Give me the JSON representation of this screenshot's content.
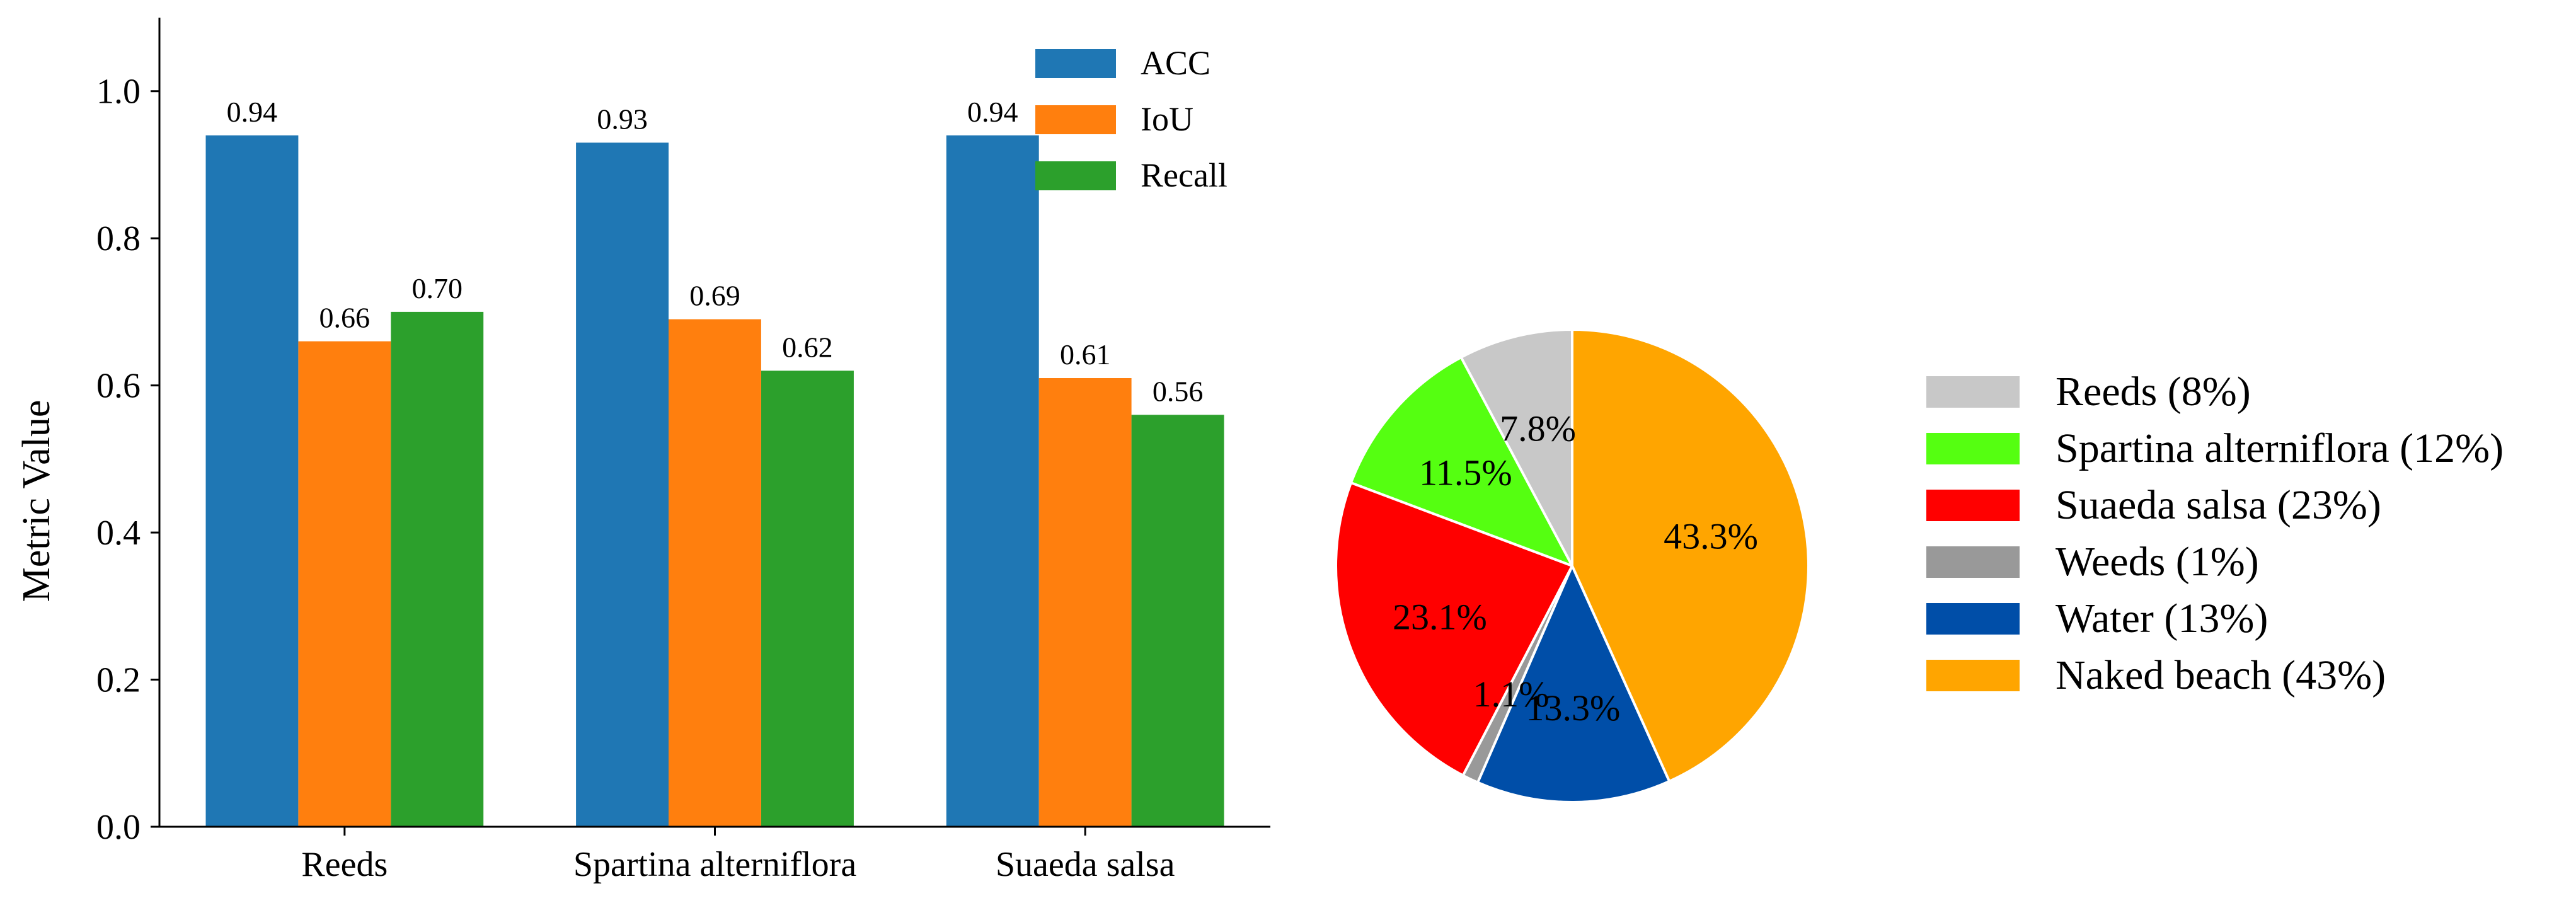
{
  "chart_data": [
    {
      "type": "bar",
      "categories": [
        "Reeds",
        "Spartina alterniflora",
        "Suaeda salsa"
      ],
      "series": [
        {
          "name": "ACC",
          "values": [
            0.94,
            0.93,
            0.94
          ],
          "labels": [
            "0.94",
            "0.93",
            "0.94"
          ],
          "color": "#1f77b4"
        },
        {
          "name": "IoU",
          "values": [
            0.66,
            0.69,
            0.61
          ],
          "labels": [
            "0.66",
            "0.69",
            "0.61"
          ],
          "color": "#ff7f0e"
        },
        {
          "name": "Recall",
          "values": [
            0.7,
            0.62,
            0.56
          ],
          "labels": [
            "0.70",
            "0.62",
            "0.56"
          ],
          "color": "#2ca02c"
        }
      ],
      "ylabel": "Metric Value",
      "ylim": [
        0,
        1.1
      ],
      "yticks": [
        0.0,
        0.2,
        0.4,
        0.6,
        0.8,
        1.0
      ],
      "ytick_labels": [
        "0.0",
        "0.2",
        "0.4",
        "0.6",
        "0.8",
        "1.0"
      ],
      "legend_placement": "top-right",
      "grid": false
    },
    {
      "type": "pie",
      "slices": [
        {
          "name": "Reeds",
          "value": 7.8,
          "label": "7.8%",
          "legend": "Reeds (8%)",
          "color": "#c8c8c8"
        },
        {
          "name": "Spartina alterniflora",
          "value": 11.5,
          "label": "11.5%",
          "legend": "Spartina alterniflora (12%)",
          "color": "#55ff11"
        },
        {
          "name": "Suaeda salsa",
          "value": 23.1,
          "label": "23.1%",
          "legend": "Suaeda salsa (23%)",
          "color": "#ff0000"
        },
        {
          "name": "Weeds",
          "value": 1.1,
          "label": "1.1%",
          "legend": "Weeds (1%)",
          "color": "#999999"
        },
        {
          "name": "Water",
          "value": 13.3,
          "label": "13.3%",
          "legend": "Water (13%)",
          "color": "#004ea8"
        },
        {
          "name": "Naked beach",
          "value": 43.3,
          "label": "43.3%",
          "legend": "Naked beach (43%)",
          "color": "#ffa500"
        }
      ],
      "start": "top",
      "direction": "counterclockwise",
      "legend_placement": "right"
    }
  ]
}
